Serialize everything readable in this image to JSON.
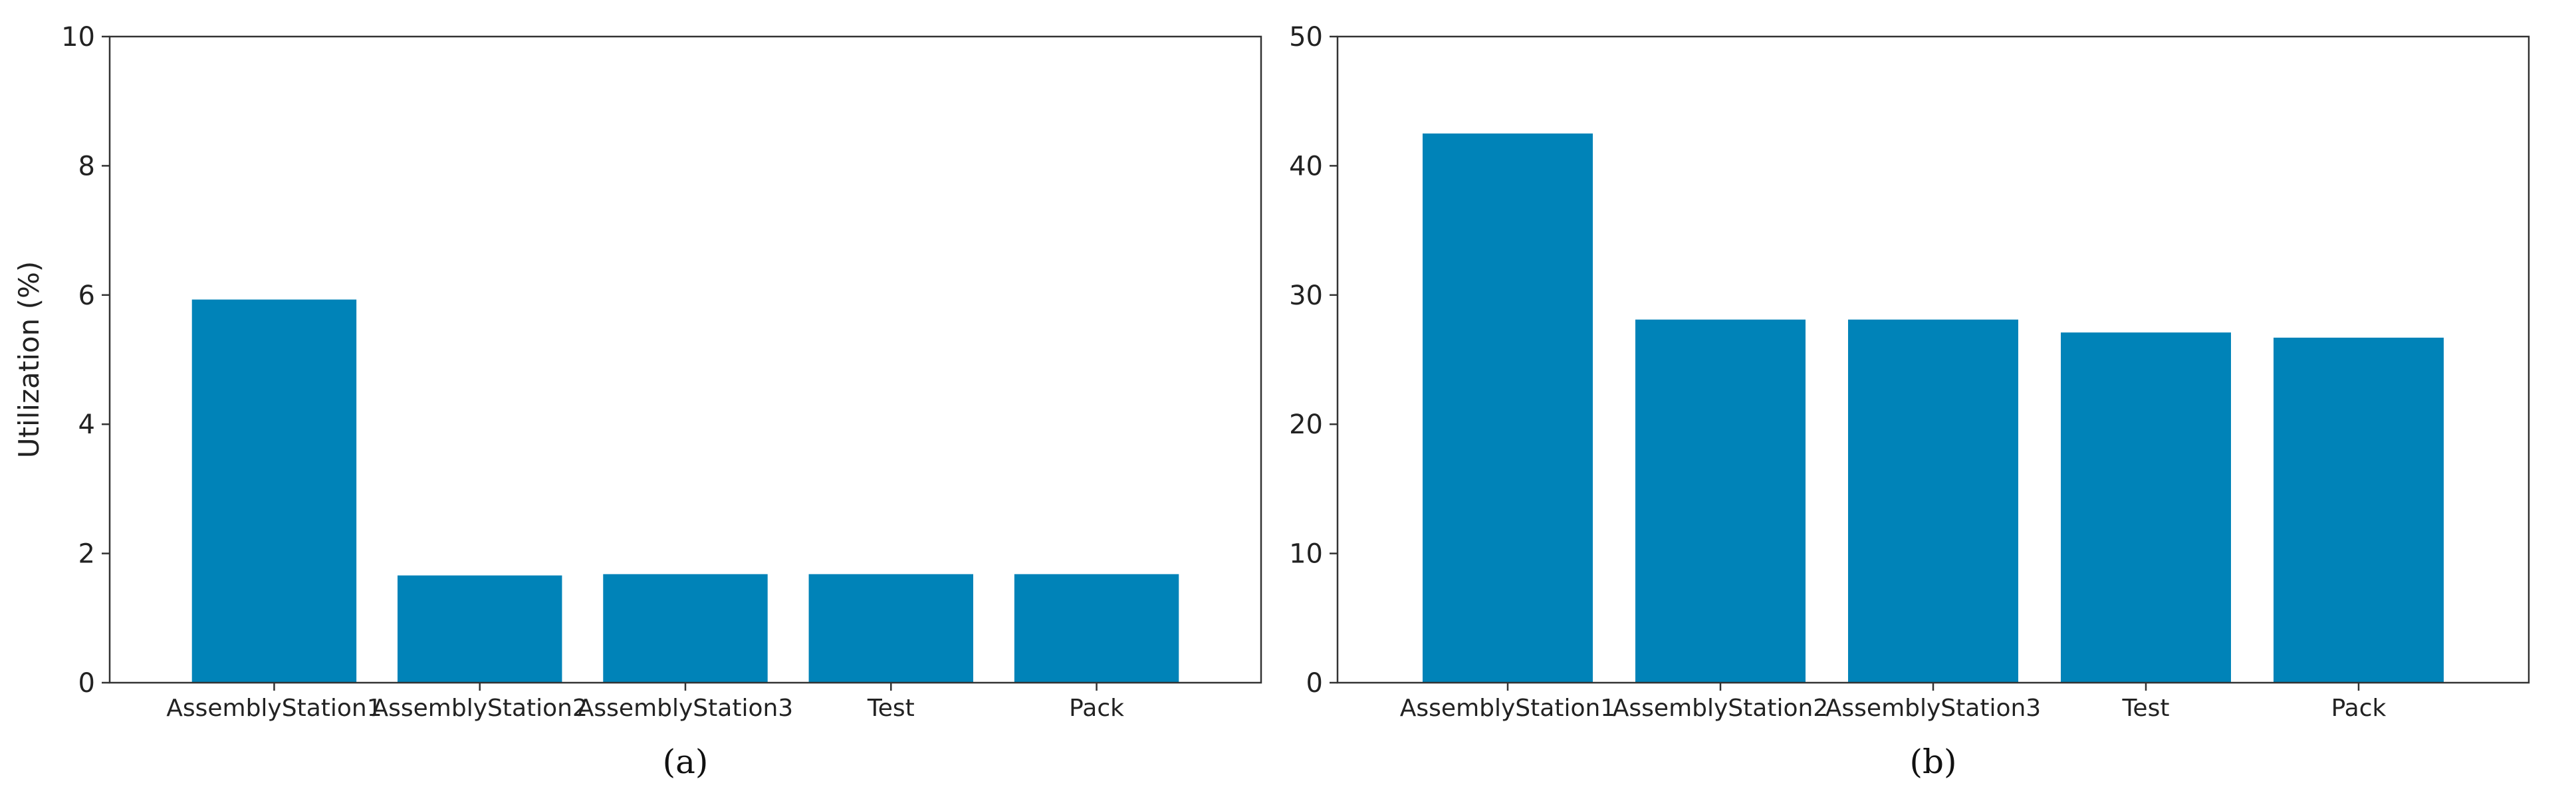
{
  "chart_data": [
    {
      "type": "bar",
      "caption": "(a)",
      "categories": [
        "AssemblyStation1",
        "AssemblyStation2",
        "AssemblyStation3",
        "Test",
        "Pack"
      ],
      "values": [
        5.93,
        1.66,
        1.68,
        1.68,
        1.68
      ],
      "title": "",
      "xlabel": "",
      "ylabel": "Utilization (%)",
      "ylim": [
        0,
        10
      ],
      "yticks": [
        0,
        2,
        4,
        6,
        8,
        10
      ],
      "grid": false,
      "bar_color": "#0083b8"
    },
    {
      "type": "bar",
      "caption": "(b)",
      "categories": [
        "AssemblyStation1",
        "AssemblyStation2",
        "AssemblyStation3",
        "Test",
        "Pack"
      ],
      "values": [
        42.5,
        28.1,
        28.1,
        27.1,
        26.7
      ],
      "title": "",
      "xlabel": "",
      "ylabel": "",
      "ylim": [
        0,
        50
      ],
      "yticks": [
        0,
        10,
        20,
        30,
        40,
        50
      ],
      "grid": false,
      "bar_color": "#0083b8"
    }
  ]
}
